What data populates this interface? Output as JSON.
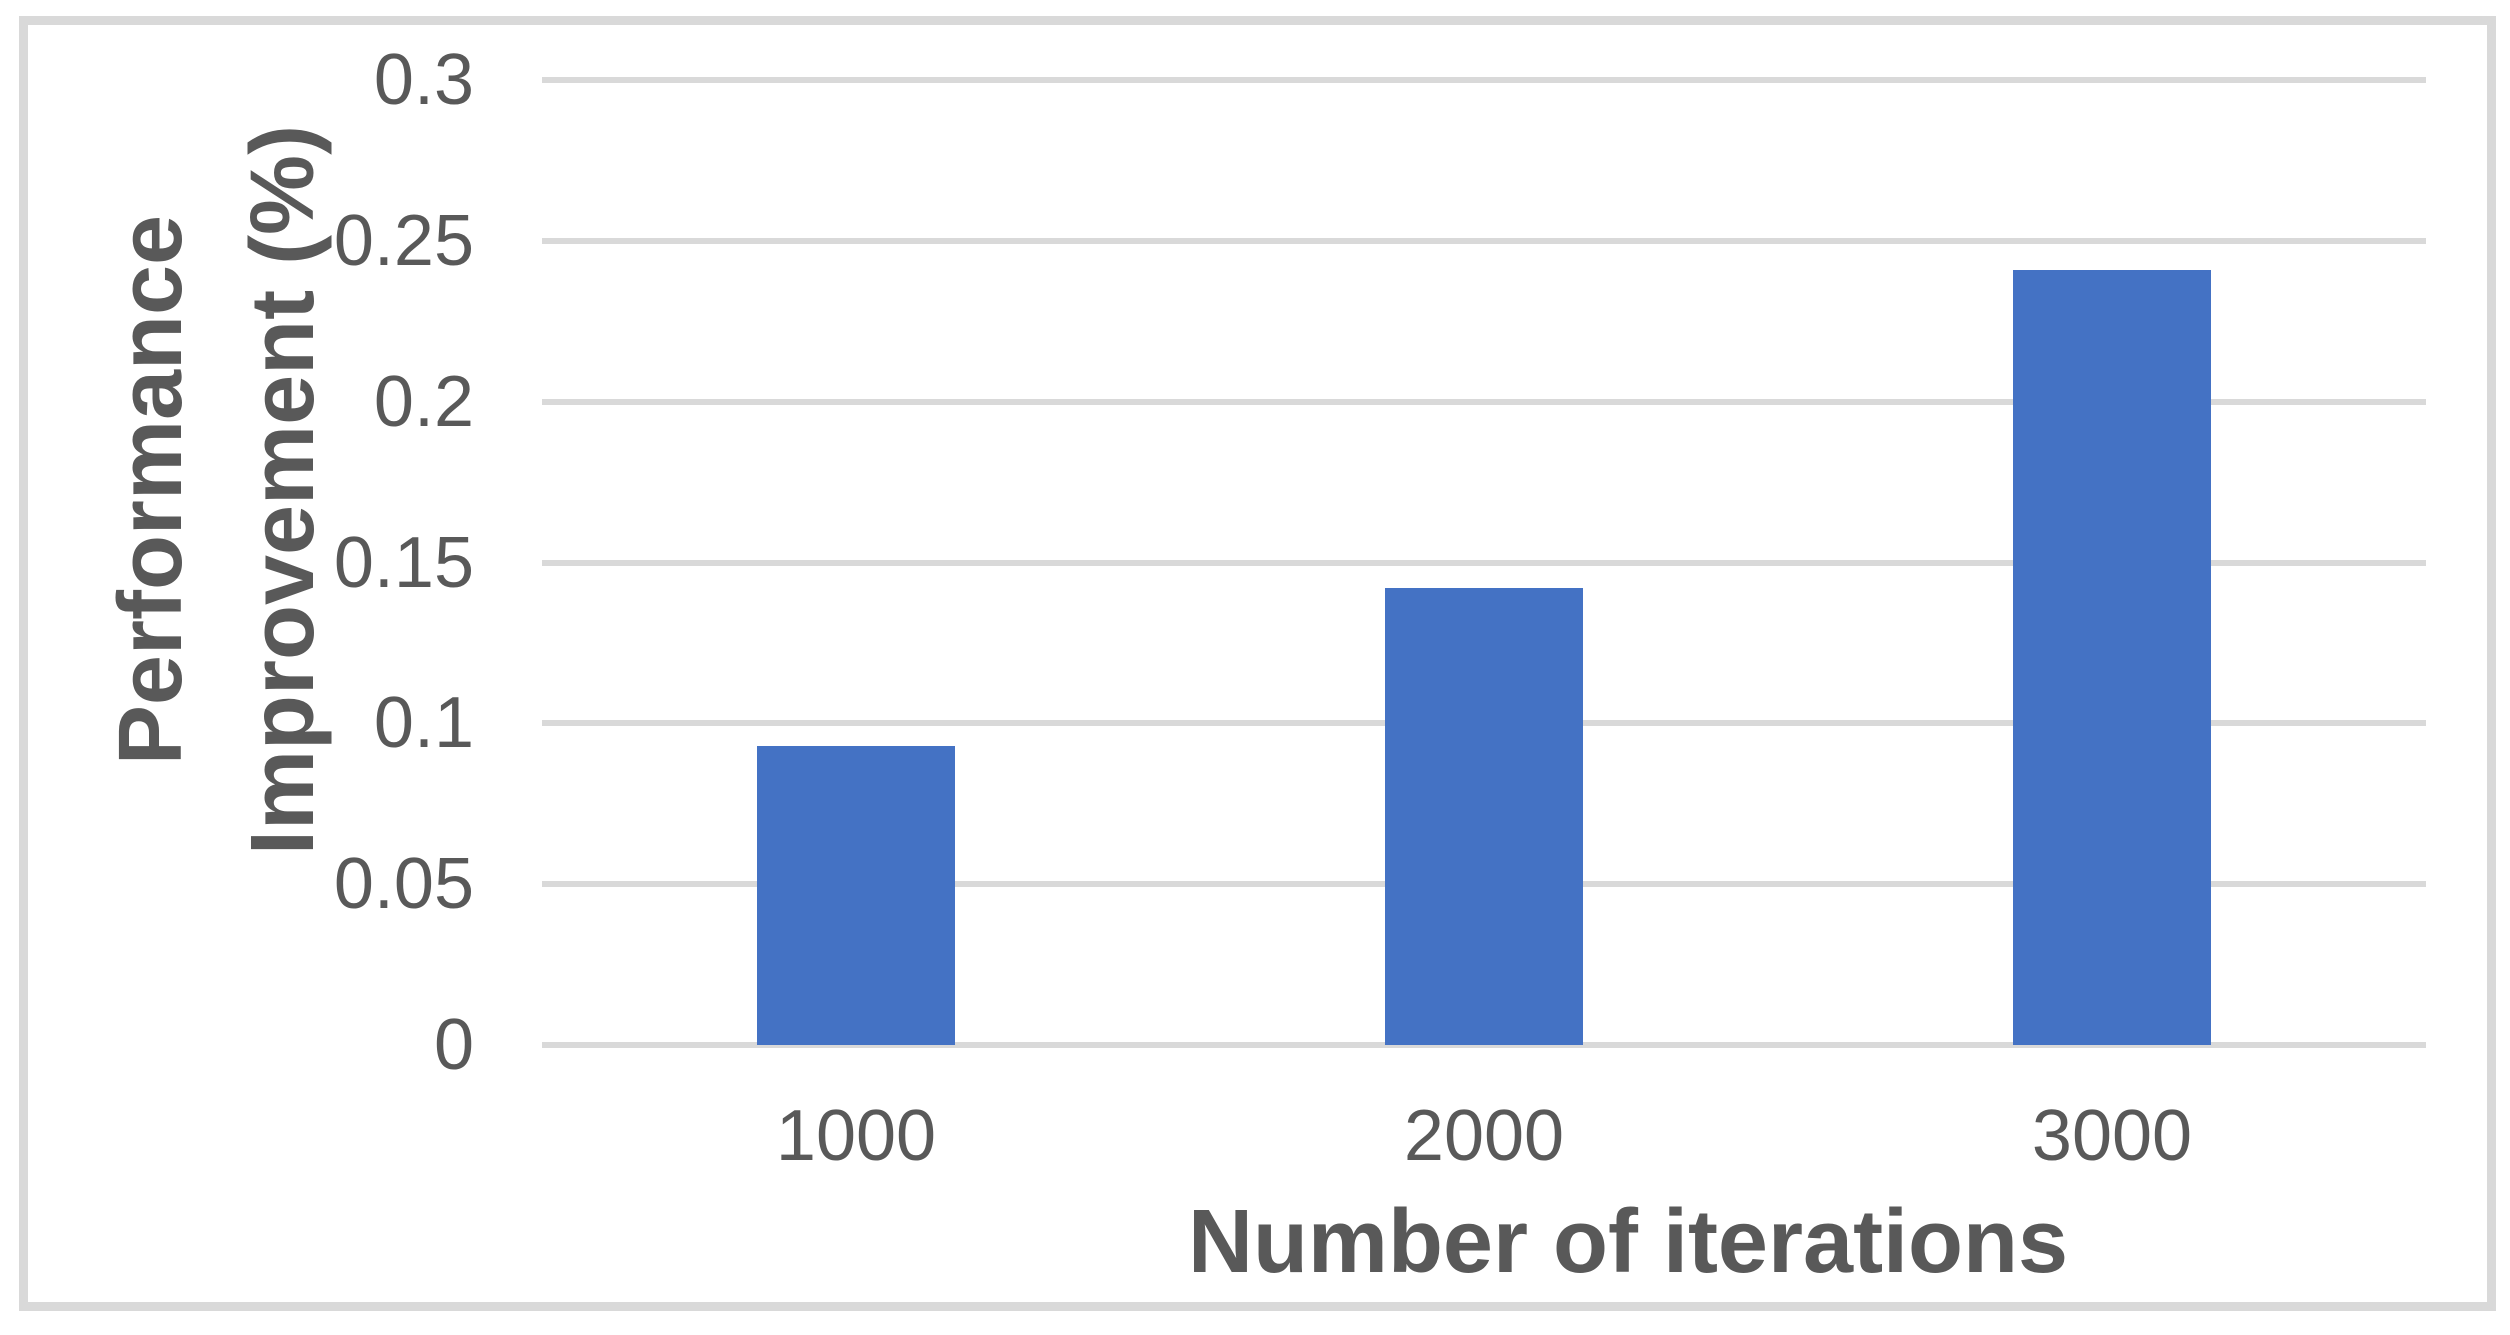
{
  "chart_data": {
    "type": "bar",
    "title": "",
    "categories": [
      "1000",
      "2000",
      "3000"
    ],
    "values": [
      0.093,
      0.142,
      0.241
    ],
    "xlabel": "Number of iterations",
    "ylabel": "Performance Improvement (%)",
    "ylabel_lines": [
      "Performance",
      "Improvement (%)"
    ],
    "ylim": [
      0,
      0.3
    ],
    "yticks": [
      0,
      0.05,
      0.1,
      0.15,
      0.2,
      0.25,
      0.3
    ],
    "ytick_labels": [
      "0",
      "0.05",
      "0.1",
      "0.15",
      "0.2",
      "0.25",
      "0.3"
    ],
    "grid": true,
    "legend": false,
    "bar_color": "#4472C4",
    "gridline_color": "#D9D9D9",
    "frame_border_color": "#D9D9D9",
    "text_color": "#595959",
    "background_color": "#FFFFFF"
  }
}
